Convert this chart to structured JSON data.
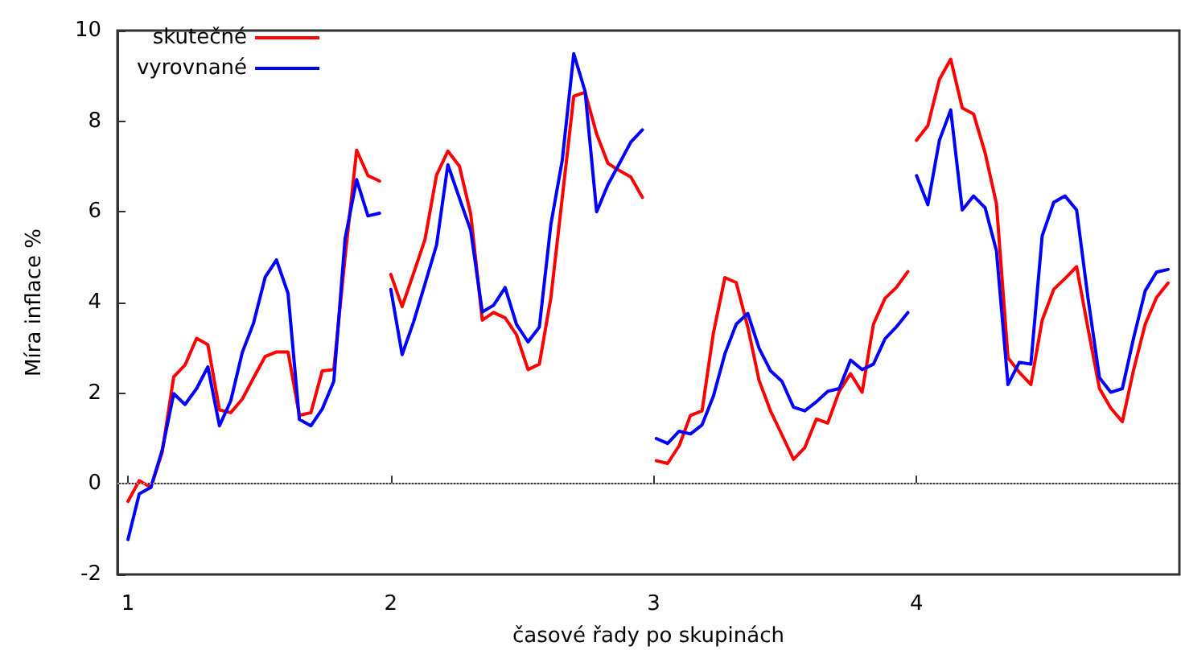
{
  "chart_data": {
    "type": "line",
    "xlabel": "časové řady po skupinách",
    "ylabel": "Míra inflace %",
    "x": [
      1,
      1.043,
      1.087,
      1.13,
      1.174,
      1.217,
      1.261,
      1.304,
      1.348,
      1.391,
      1.435,
      1.478,
      1.522,
      1.565,
      1.609,
      1.652,
      1.696,
      1.739,
      1.783,
      1.826,
      1.87,
      1.913,
      1.957,
      1.98,
      2,
      2.043,
      2.087,
      2.13,
      2.174,
      2.217,
      2.261,
      2.304,
      2.348,
      2.391,
      2.435,
      2.478,
      2.522,
      2.565,
      2.609,
      2.652,
      2.696,
      2.739,
      2.783,
      2.826,
      2.87,
      2.913,
      2.957,
      2.98,
      3.01,
      3.053,
      3.097,
      3.14,
      3.184,
      3.227,
      3.271,
      3.314,
      3.358,
      3.401,
      3.445,
      3.488,
      3.532,
      3.575,
      3.619,
      3.662,
      3.706,
      3.749,
      3.793,
      3.836,
      3.88,
      3.923,
      3.967,
      3.98,
      4,
      4.043,
      4.087,
      4.13,
      4.174,
      4.217,
      4.261,
      4.304,
      4.348,
      4.391,
      4.435,
      4.478,
      4.522,
      4.565,
      4.609,
      4.652,
      4.696,
      4.739,
      4.783,
      4.826,
      4.87,
      4.913,
      4.957
    ],
    "series": [
      {
        "name": "skutečné",
        "color": "#ff0000",
        "values": [
          -0.39,
          0.07,
          -0.08,
          0.69,
          2.36,
          2.62,
          3.21,
          3.07,
          1.63,
          1.57,
          1.87,
          2.34,
          2.81,
          2.91,
          2.91,
          1.51,
          1.57,
          2.49,
          2.52,
          5.0,
          7.36,
          6.8,
          6.68,
          null,
          4.62,
          3.91,
          4.65,
          5.39,
          6.81,
          7.34,
          7.01,
          5.95,
          3.61,
          3.78,
          3.66,
          3.29,
          2.52,
          2.64,
          4.11,
          6.3,
          8.55,
          8.64,
          7.72,
          7.07,
          6.91,
          6.77,
          6.32,
          null,
          0.51,
          0.45,
          0.84,
          1.51,
          1.61,
          3.32,
          4.55,
          4.44,
          3.46,
          2.28,
          1.6,
          1.08,
          0.54,
          0.8,
          1.43,
          1.34,
          2.04,
          2.43,
          2.02,
          3.52,
          4.09,
          4.33,
          4.68,
          null,
          7.58,
          7.9,
          8.92,
          9.37,
          8.29,
          8.16,
          7.3,
          6.18,
          2.78,
          2.46,
          2.19,
          3.61,
          4.29,
          4.53,
          4.79,
          3.44,
          2.1,
          1.67,
          1.37,
          2.52,
          3.52,
          4.11,
          4.43
        ]
      },
      {
        "name": "vyrovnané",
        "color": "#0000ff",
        "values": [
          -1.23,
          -0.22,
          -0.08,
          0.74,
          1.99,
          1.75,
          2.1,
          2.58,
          1.28,
          1.83,
          2.9,
          3.55,
          4.56,
          4.94,
          4.2,
          1.42,
          1.28,
          1.65,
          2.26,
          5.41,
          6.71,
          5.91,
          5.97,
          null,
          4.29,
          2.85,
          3.58,
          4.41,
          5.27,
          7.04,
          6.3,
          5.59,
          3.79,
          3.94,
          4.33,
          3.52,
          3.13,
          3.46,
          5.73,
          7.13,
          9.49,
          8.66,
          6.0,
          6.6,
          7.07,
          7.54,
          7.81,
          null,
          1.0,
          0.89,
          1.16,
          1.1,
          1.3,
          1.93,
          2.87,
          3.52,
          3.76,
          2.99,
          2.49,
          2.26,
          1.69,
          1.61,
          1.81,
          2.04,
          2.1,
          2.73,
          2.52,
          2.64,
          3.2,
          3.46,
          3.78,
          null,
          6.8,
          6.16,
          7.58,
          8.25,
          6.04,
          6.35,
          6.09,
          5.14,
          2.19,
          2.68,
          2.64,
          5.47,
          6.21,
          6.35,
          6.04,
          4.11,
          2.34,
          2.02,
          2.1,
          3.22,
          4.26,
          4.67,
          4.73
        ]
      }
    ],
    "xlim": [
      0.96,
      5
    ],
    "xticks": [
      1,
      2,
      3,
      4
    ],
    "ylim": [
      -2,
      10
    ],
    "yticks": [
      -2,
      0,
      2,
      4,
      6,
      8,
      10
    ],
    "ref_lines": [
      {
        "axis": "y",
        "value": 0,
        "color": "#aaaaaa",
        "line_style": "dotted"
      }
    ],
    "legend": "top left",
    "grid": false,
    "marker": "none",
    "line_style": "solid"
  }
}
